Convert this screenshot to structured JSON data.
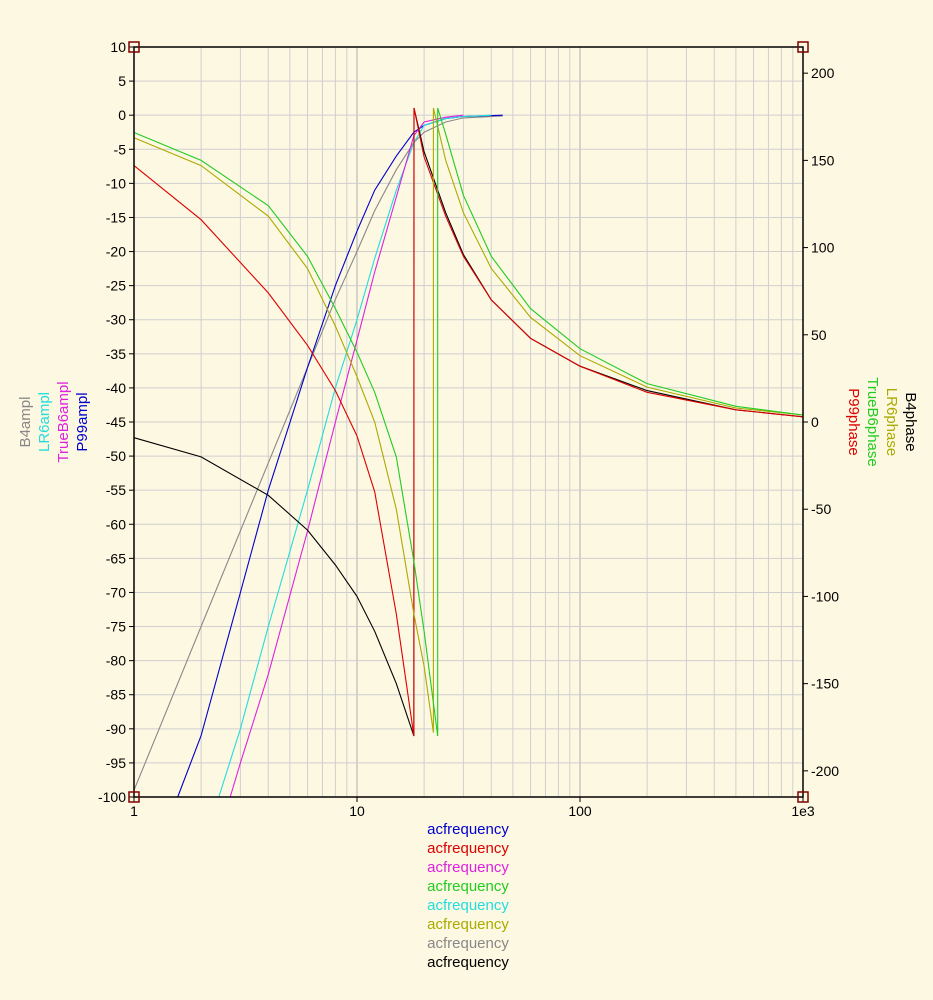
{
  "chart_data": {
    "type": "line",
    "x_scale": "log",
    "xlim": [
      1,
      1000
    ],
    "ylim_left": [
      -100,
      10
    ],
    "ylim_right": [
      -215,
      215
    ],
    "grid": true,
    "x_ticks": [
      {
        "value": 1,
        "label": "1"
      },
      {
        "value": 10,
        "label": "10"
      },
      {
        "value": 100,
        "label": "100"
      },
      {
        "value": 1000,
        "label": "1e3"
      }
    ],
    "left_ticks": [
      10,
      5,
      0,
      -5,
      -10,
      -15,
      -20,
      -25,
      -30,
      -35,
      -40,
      -45,
      -50,
      -55,
      -60,
      -65,
      -70,
      -75,
      -80,
      -85,
      -90,
      -95,
      -100
    ],
    "right_ticks": [
      200,
      150,
      100,
      50,
      0,
      -50,
      -100,
      -150,
      -200
    ],
    "left_axis_labels": [
      {
        "text": "B4ampl",
        "color": "#888888"
      },
      {
        "text": "LR6ampl",
        "color": "#22dddd"
      },
      {
        "text": "TrueB6ampl",
        "color": "#dd22dd"
      },
      {
        "text": "P99ampl",
        "color": "#0000cc"
      }
    ],
    "right_axis_labels": [
      {
        "text": "B4phase",
        "color": "#000000"
      },
      {
        "text": "LR6phase",
        "color": "#aaaa00"
      },
      {
        "text": "TrueB6phase",
        "color": "#22cc22"
      },
      {
        "text": "P99phase",
        "color": "#dd0000"
      }
    ],
    "legend": [
      {
        "text": "acfrequency",
        "color": "#0000cc"
      },
      {
        "text": "acfrequency",
        "color": "#dd0000"
      },
      {
        "text": "acfrequency",
        "color": "#dd22dd"
      },
      {
        "text": "acfrequency",
        "color": "#22cc22"
      },
      {
        "text": "acfrequency",
        "color": "#22dddd"
      },
      {
        "text": "acfrequency",
        "color": "#aaaa00"
      },
      {
        "text": "acfrequency",
        "color": "#888888"
      },
      {
        "text": "acfrequency",
        "color": "#000000"
      }
    ],
    "series": [
      {
        "axis": "left",
        "color": "#888888",
        "points": [
          [
            1,
            -99
          ],
          [
            2,
            -75
          ],
          [
            4,
            -51
          ],
          [
            6,
            -37
          ],
          [
            8,
            -27
          ],
          [
            10,
            -20
          ],
          [
            12,
            -14
          ],
          [
            15,
            -8
          ],
          [
            18,
            -4
          ],
          [
            20,
            -2.5
          ],
          [
            25,
            -1
          ],
          [
            30,
            -0.4
          ],
          [
            45,
            -0.1
          ]
        ]
      },
      {
        "axis": "left",
        "color": "#0000cc",
        "points": [
          [
            1.57,
            -100
          ],
          [
            2,
            -91
          ],
          [
            3,
            -70
          ],
          [
            4,
            -55
          ],
          [
            6,
            -37
          ],
          [
            8,
            -25
          ],
          [
            10,
            -17
          ],
          [
            12,
            -11
          ],
          [
            15,
            -6
          ],
          [
            18,
            -2.5
          ],
          [
            20,
            -1.5
          ],
          [
            25,
            -0.5
          ],
          [
            30,
            -0.2
          ],
          [
            45,
            0
          ]
        ]
      },
      {
        "axis": "left",
        "color": "#22dddd",
        "points": [
          [
            2.4,
            -100
          ],
          [
            3,
            -90
          ],
          [
            4,
            -75
          ],
          [
            6,
            -55
          ],
          [
            8,
            -40
          ],
          [
            10,
            -30
          ],
          [
            12,
            -21
          ],
          [
            15,
            -11
          ],
          [
            18,
            -4
          ],
          [
            20,
            -1.5
          ],
          [
            25,
            -0.5
          ],
          [
            30,
            -0.2
          ],
          [
            40,
            0
          ]
        ]
      },
      {
        "axis": "left",
        "color": "#dd22dd",
        "points": [
          [
            2.7,
            -100
          ],
          [
            3,
            -95
          ],
          [
            4,
            -82
          ],
          [
            6,
            -61
          ],
          [
            8,
            -45
          ],
          [
            10,
            -33
          ],
          [
            12,
            -23
          ],
          [
            15,
            -12
          ],
          [
            18,
            -3
          ],
          [
            20,
            -1
          ],
          [
            25,
            -0.3
          ],
          [
            30,
            0
          ]
        ]
      },
      {
        "axis": "right",
        "color": "#000000",
        "points": [
          [
            1,
            -9
          ],
          [
            2,
            -20
          ],
          [
            4,
            -42
          ],
          [
            6,
            -62
          ],
          [
            8,
            -82
          ],
          [
            10,
            -100
          ],
          [
            12,
            -120
          ],
          [
            15,
            -150
          ],
          [
            18,
            -180
          ],
          [
            18.01,
            180
          ],
          [
            20,
            155
          ],
          [
            25,
            120
          ],
          [
            30,
            96
          ],
          [
            40,
            70
          ],
          [
            60,
            48
          ],
          [
            100,
            32
          ],
          [
            200,
            18
          ],
          [
            500,
            7
          ],
          [
            1000,
            3
          ]
        ]
      },
      {
        "axis": "right",
        "color": "#dd0000",
        "points": [
          [
            1,
            147
          ],
          [
            2,
            116
          ],
          [
            4,
            74
          ],
          [
            6,
            44
          ],
          [
            8,
            18
          ],
          [
            10,
            -8
          ],
          [
            12,
            -40
          ],
          [
            15,
            -110
          ],
          [
            18,
            -180
          ],
          [
            18.01,
            180
          ],
          [
            20,
            152
          ],
          [
            25,
            118
          ],
          [
            30,
            95
          ],
          [
            40,
            70
          ],
          [
            60,
            48
          ],
          [
            100,
            32
          ],
          [
            200,
            17
          ],
          [
            500,
            7
          ],
          [
            1000,
            3
          ]
        ]
      },
      {
        "axis": "right",
        "color": "#aaaa00",
        "points": [
          [
            1,
            163
          ],
          [
            2,
            147
          ],
          [
            4,
            118
          ],
          [
            6,
            88
          ],
          [
            8,
            55
          ],
          [
            10,
            26
          ],
          [
            12,
            0
          ],
          [
            15,
            -50
          ],
          [
            18,
            -110
          ],
          [
            20,
            -140
          ],
          [
            22,
            -178
          ],
          [
            22.01,
            180
          ],
          [
            25,
            150
          ],
          [
            30,
            120
          ],
          [
            40,
            88
          ],
          [
            60,
            60
          ],
          [
            100,
            38
          ],
          [
            200,
            20
          ],
          [
            500,
            8
          ],
          [
            1000,
            4
          ]
        ]
      },
      {
        "axis": "right",
        "color": "#22cc22",
        "points": [
          [
            1,
            166
          ],
          [
            2,
            150
          ],
          [
            4,
            124
          ],
          [
            6,
            95
          ],
          [
            8,
            65
          ],
          [
            10,
            40
          ],
          [
            12,
            17
          ],
          [
            15,
            -20
          ],
          [
            18,
            -80
          ],
          [
            20,
            -120
          ],
          [
            23,
            -180
          ],
          [
            23.01,
            180
          ],
          [
            25,
            165
          ],
          [
            30,
            130
          ],
          [
            40,
            95
          ],
          [
            60,
            65
          ],
          [
            100,
            42
          ],
          [
            200,
            22
          ],
          [
            500,
            9
          ],
          [
            1000,
            4
          ]
        ]
      }
    ]
  }
}
